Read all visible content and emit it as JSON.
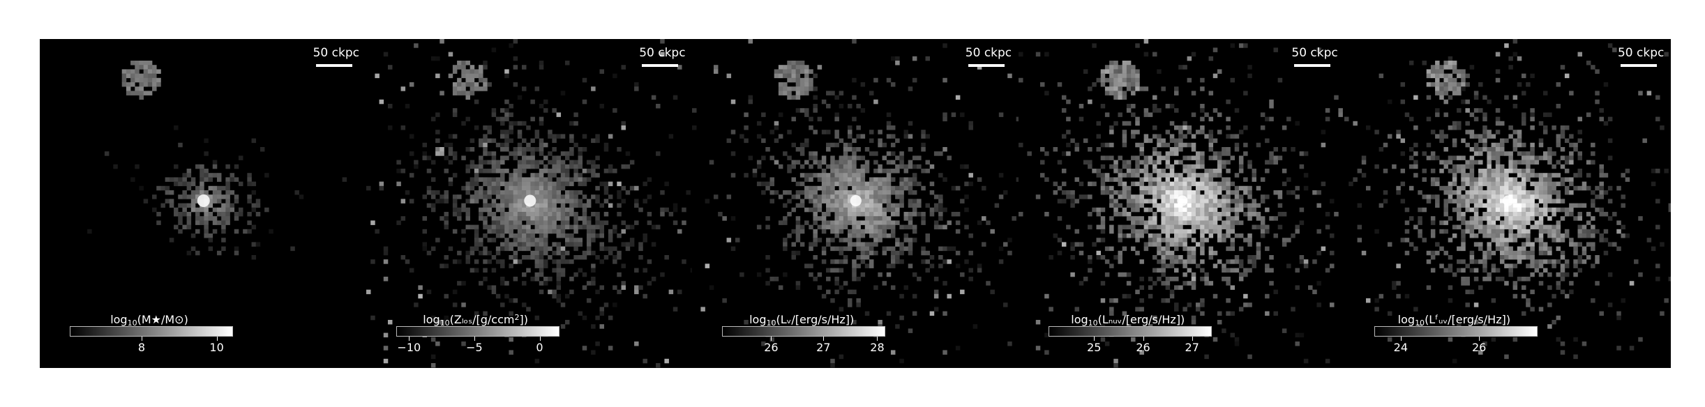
{
  "panels": [
    {
      "id": "stellar-mass",
      "scalebar": "50 ckpc",
      "label_prefix": "log",
      "label_sub": "10",
      "label_body": "(M★/M⊙)",
      "label_sup": "",
      "label_tail": "",
      "ticks": [
        {
          "label": "8",
          "frac": 0.44
        },
        {
          "label": "10",
          "frac": 0.9
        }
      ]
    },
    {
      "id": "metal-column-density",
      "scalebar": "50 ckpc",
      "label_prefix": "log",
      "label_sub": "10",
      "label_body": "(Zₗₒₛ/[g/ccm",
      "label_sup": "2",
      "label_tail": "])",
      "ticks": [
        {
          "label": "−10",
          "frac": 0.08
        },
        {
          "label": "−5",
          "frac": 0.48
        },
        {
          "label": "0",
          "frac": 0.88
        }
      ]
    },
    {
      "id": "v-band-luminosity",
      "scalebar": "50 ckpc",
      "label_prefix": "log",
      "label_sub": "10",
      "label_body": "(Lᵥ/[erg/s/Hz])",
      "label_sup": "",
      "label_tail": "",
      "ticks": [
        {
          "label": "26",
          "frac": 0.3
        },
        {
          "label": "27",
          "frac": 0.62
        },
        {
          "label": "28",
          "frac": 0.95
        }
      ]
    },
    {
      "id": "nuv-luminosity",
      "scalebar": "50 ckpc",
      "label_prefix": "log",
      "label_sub": "10",
      "label_body": "(Lₙᵤᵥ/[erg/s/Hz])",
      "label_sup": "",
      "label_tail": "",
      "ticks": [
        {
          "label": "25",
          "frac": 0.28
        },
        {
          "label": "26",
          "frac": 0.58
        },
        {
          "label": "27",
          "frac": 0.88
        }
      ]
    },
    {
      "id": "fuv-luminosity",
      "scalebar": "50 ckpc",
      "label_prefix": "log",
      "label_sub": "10",
      "label_body": "(Lᶠᵤᵥ/[erg/s/Hz])",
      "label_sup": "",
      "label_tail": "",
      "ticks": [
        {
          "label": "24",
          "frac": 0.16
        },
        {
          "label": "26",
          "frac": 0.64
        }
      ]
    }
  ]
}
